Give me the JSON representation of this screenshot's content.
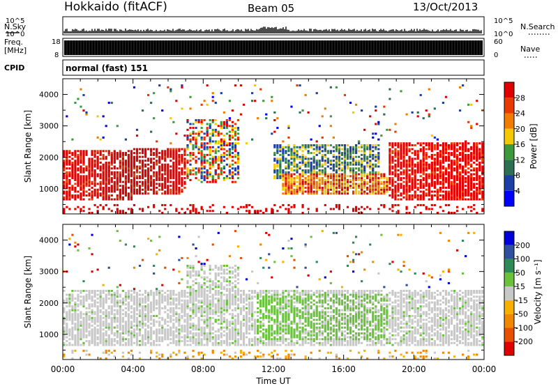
{
  "header": {
    "station": "Hokkaido (fitACF)",
    "beam": "Beam 05",
    "date": "13/Oct/2013"
  },
  "noise_panel": {
    "left_label": "N.Sky",
    "right_label": "N.Search",
    "left_ticks": [
      "10^5",
      "10^0"
    ],
    "right_ticks": [
      "10^5",
      "10^0"
    ]
  },
  "freq_panel": {
    "left_label_1": "Freq.",
    "left_label_2": "[MHz]",
    "right_label": "Nave",
    "left_ticks": [
      "18",
      "8"
    ],
    "right_ticks": [
      "60",
      "0"
    ]
  },
  "cpid": {
    "label": "CPID",
    "text": "normal (fast) 151"
  },
  "colors": {
    "power": [
      "#0000ff",
      "#1c3fa6",
      "#2e6e52",
      "#3c9a3c",
      "#f5c800",
      "#f07d00",
      "#e83a00",
      "#e00000"
    ],
    "velocity": [
      "#0000d8",
      "#2f4f9f",
      "#2e8b57",
      "#6ac23c",
      "#c8c8c8",
      "#f8b000",
      "#f08800",
      "#e85000",
      "#e00000"
    ]
  },
  "chart_data": [
    {
      "type": "heatmap",
      "name": "power",
      "ylabel": "Slant Range [km]",
      "y_ticks": [
        1000,
        2000,
        3000,
        4000
      ],
      "ylim": [
        200,
        4500
      ],
      "x_ticks": [
        "00:00",
        "04:00",
        "08:00",
        "12:00",
        "16:00",
        "20:00",
        "00:00"
      ],
      "xlim": [
        0,
        24
      ],
      "colorbar_label": "Power [dB]",
      "colorbar_ticks": [
        "4",
        "8",
        "12",
        "16",
        "20",
        "24",
        "28"
      ],
      "features": [
        {
          "x_start": 0,
          "x_end": 4,
          "y_start": 600,
          "y_end": 2200,
          "level": "red"
        },
        {
          "x_start": 4,
          "x_end": 7,
          "y_start": 800,
          "y_end": 2300,
          "level": "red"
        },
        {
          "x_start": 7,
          "x_end": 10,
          "y_start": 1200,
          "y_end": 3200,
          "level": "mixed"
        },
        {
          "x_start": 12.5,
          "x_end": 18.5,
          "y_start": 800,
          "y_end": 1500,
          "level": "orange"
        },
        {
          "x_start": 12,
          "x_end": 18,
          "y_start": 1300,
          "y_end": 2400,
          "level": "green"
        },
        {
          "x_start": 18.5,
          "x_end": 24,
          "y_start": 600,
          "y_end": 2500,
          "level": "red"
        }
      ]
    },
    {
      "type": "heatmap",
      "name": "velocity",
      "ylabel": "Slant Range [km]",
      "y_ticks": [
        1000,
        2000,
        3000,
        4000
      ],
      "ylim": [
        200,
        4500
      ],
      "x_ticks": [
        "00:00",
        "04:00",
        "08:00",
        "12:00",
        "16:00",
        "20:00",
        "00:00"
      ],
      "xlim": [
        0,
        24
      ],
      "xlabel": "Time UT",
      "colorbar_label": "Velocity [m s⁻¹]",
      "colorbar_ticks": [
        "200",
        "100",
        "50",
        "15",
        "-15",
        "-50",
        "-100",
        "-200"
      ],
      "features": [
        {
          "x_start": 0,
          "x_end": 24,
          "y_start": 600,
          "y_end": 2400,
          "level": "grey"
        },
        {
          "x_start": 7,
          "x_end": 10,
          "y_start": 1200,
          "y_end": 3200,
          "level": "grey"
        },
        {
          "x_start": 11,
          "x_end": 18.5,
          "y_start": 800,
          "y_end": 2300,
          "level": "green"
        }
      ]
    }
  ]
}
